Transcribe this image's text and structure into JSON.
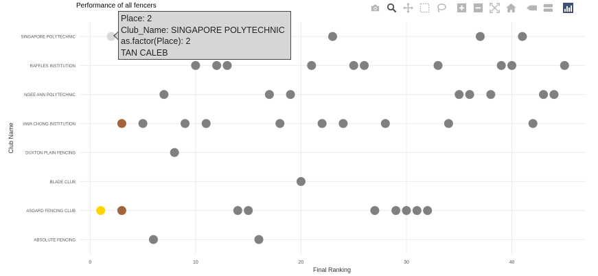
{
  "title": "Performance of all fencers",
  "chart_data": {
    "type": "scatter",
    "title": "Performance of all fencers",
    "xlabel": "Final Ranking",
    "ylabel": "Club Name",
    "xlim": [
      -1,
      47
    ],
    "x_ticks": [
      0,
      10,
      20,
      30,
      40
    ],
    "grid": true,
    "categories": [
      "ABSOLUTE FENCING",
      "ASGARD FENCING CLUB",
      "BLADE CLUB",
      "DUXTON PLAIN FENCING",
      "HWA CHONG INSTITUTION",
      "NGEE ANN POLYTECHNIC",
      "RAFFLES INSTITUTION",
      "SINGAPORE POLYTECHNIC"
    ],
    "points": [
      {
        "club": "SINGAPORE POLYTECHNIC",
        "x": 2,
        "color": "#d9d9d9"
      },
      {
        "club": "SINGAPORE POLYTECHNIC",
        "x": 23,
        "color": "#808080"
      },
      {
        "club": "SINGAPORE POLYTECHNIC",
        "x": 37,
        "color": "#808080"
      },
      {
        "club": "SINGAPORE POLYTECHNIC",
        "x": 41,
        "color": "#808080"
      },
      {
        "club": "RAFFLES INSTITUTION",
        "x": 10,
        "color": "#808080"
      },
      {
        "club": "RAFFLES INSTITUTION",
        "x": 12,
        "color": "#808080"
      },
      {
        "club": "RAFFLES INSTITUTION",
        "x": 13,
        "color": "#808080"
      },
      {
        "club": "RAFFLES INSTITUTION",
        "x": 21,
        "color": "#808080"
      },
      {
        "club": "RAFFLES INSTITUTION",
        "x": 25,
        "color": "#808080"
      },
      {
        "club": "RAFFLES INSTITUTION",
        "x": 26,
        "color": "#808080"
      },
      {
        "club": "RAFFLES INSTITUTION",
        "x": 33,
        "color": "#808080"
      },
      {
        "club": "RAFFLES INSTITUTION",
        "x": 39,
        "color": "#808080"
      },
      {
        "club": "RAFFLES INSTITUTION",
        "x": 40,
        "color": "#808080"
      },
      {
        "club": "RAFFLES INSTITUTION",
        "x": 45,
        "color": "#808080"
      },
      {
        "club": "NGEE ANN POLYTECHNIC",
        "x": 7,
        "color": "#808080"
      },
      {
        "club": "NGEE ANN POLYTECHNIC",
        "x": 17,
        "color": "#808080"
      },
      {
        "club": "NGEE ANN POLYTECHNIC",
        "x": 19,
        "color": "#808080"
      },
      {
        "club": "NGEE ANN POLYTECHNIC",
        "x": 35,
        "color": "#808080"
      },
      {
        "club": "NGEE ANN POLYTECHNIC",
        "x": 36,
        "color": "#808080"
      },
      {
        "club": "NGEE ANN POLYTECHNIC",
        "x": 38,
        "color": "#808080"
      },
      {
        "club": "NGEE ANN POLYTECHNIC",
        "x": 43,
        "color": "#808080"
      },
      {
        "club": "NGEE ANN POLYTECHNIC",
        "x": 44,
        "color": "#808080"
      },
      {
        "club": "HWA CHONG INSTITUTION",
        "x": 3,
        "color": "#a0653a"
      },
      {
        "club": "HWA CHONG INSTITUTION",
        "x": 5,
        "color": "#808080"
      },
      {
        "club": "HWA CHONG INSTITUTION",
        "x": 9,
        "color": "#808080"
      },
      {
        "club": "HWA CHONG INSTITUTION",
        "x": 11,
        "color": "#808080"
      },
      {
        "club": "HWA CHONG INSTITUTION",
        "x": 18,
        "color": "#808080"
      },
      {
        "club": "HWA CHONG INSTITUTION",
        "x": 22,
        "color": "#808080"
      },
      {
        "club": "HWA CHONG INSTITUTION",
        "x": 24,
        "color": "#808080"
      },
      {
        "club": "HWA CHONG INSTITUTION",
        "x": 28,
        "color": "#808080"
      },
      {
        "club": "HWA CHONG INSTITUTION",
        "x": 34,
        "color": "#808080"
      },
      {
        "club": "HWA CHONG INSTITUTION",
        "x": 42,
        "color": "#808080"
      },
      {
        "club": "DUXTON PLAIN FENCING",
        "x": 8,
        "color": "#808080"
      },
      {
        "club": "BLADE CLUB",
        "x": 20,
        "color": "#808080"
      },
      {
        "club": "ASGARD FENCING CLUB",
        "x": 1,
        "color": "#ffd700"
      },
      {
        "club": "ASGARD FENCING CLUB",
        "x": 3,
        "color": "#a0653a"
      },
      {
        "club": "ASGARD FENCING CLUB",
        "x": 14,
        "color": "#808080"
      },
      {
        "club": "ASGARD FENCING CLUB",
        "x": 15,
        "color": "#808080"
      },
      {
        "club": "ASGARD FENCING CLUB",
        "x": 27,
        "color": "#808080"
      },
      {
        "club": "ASGARD FENCING CLUB",
        "x": 29,
        "color": "#808080"
      },
      {
        "club": "ASGARD FENCING CLUB",
        "x": 30,
        "color": "#808080"
      },
      {
        "club": "ASGARD FENCING CLUB",
        "x": 31,
        "color": "#808080"
      },
      {
        "club": "ASGARD FENCING CLUB",
        "x": 32,
        "color": "#808080"
      },
      {
        "club": "ABSOLUTE FENCING",
        "x": 6,
        "color": "#808080"
      },
      {
        "club": "ABSOLUTE FENCING",
        "x": 16,
        "color": "#808080"
      }
    ]
  },
  "tooltip": {
    "line1": "Place:  2",
    "line2": "Club_Name: SINGAPORE POLYTECHNIC",
    "line3": "as.factor(Place): 2",
    "line4": "TAN CALEB"
  },
  "modebar": {
    "buttons": [
      "camera-icon",
      "zoom-icon",
      "pan-icon",
      "box-select-icon",
      "lasso-select-icon",
      "zoom-in-icon",
      "zoom-out-icon",
      "autoscale-icon",
      "reset-axes-icon",
      "spike-lines-icon",
      "compare-hover-icon",
      "plotly-logo-icon"
    ]
  },
  "colors": {
    "gold": "#ffd700",
    "silver": "#d9d9d9",
    "bronze": "#a0653a",
    "other": "#808080",
    "grid": "#ebebeb"
  }
}
